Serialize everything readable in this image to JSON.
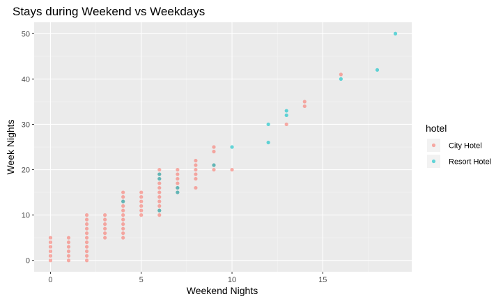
{
  "chart_data": {
    "type": "scatter",
    "title": "Stays during Weekend vs Weekdays",
    "xlabel": "Weekend Nights",
    "ylabel": "Week Nights",
    "xlim": [
      -0.9,
      19.9
    ],
    "ylim": [
      -2.5,
      52.5
    ],
    "x_ticks": [
      0,
      5,
      10,
      15
    ],
    "y_ticks": [
      0,
      10,
      20,
      30,
      40,
      50
    ],
    "grid": true,
    "legend_position": "right",
    "legend_title": "hotel",
    "series": [
      {
        "name": "City Hotel",
        "color": "#F8766D",
        "points": [
          [
            0,
            0
          ],
          [
            0,
            1
          ],
          [
            0,
            2
          ],
          [
            0,
            3
          ],
          [
            0,
            4
          ],
          [
            0,
            5
          ],
          [
            1,
            0
          ],
          [
            1,
            1
          ],
          [
            1,
            2
          ],
          [
            1,
            3
          ],
          [
            1,
            4
          ],
          [
            1,
            5
          ],
          [
            2,
            0
          ],
          [
            2,
            1
          ],
          [
            2,
            2
          ],
          [
            2,
            3
          ],
          [
            2,
            4
          ],
          [
            2,
            5
          ],
          [
            2,
            6
          ],
          [
            2,
            7
          ],
          [
            2,
            8
          ],
          [
            2,
            9
          ],
          [
            2,
            10
          ],
          [
            3,
            5
          ],
          [
            3,
            6
          ],
          [
            3,
            7
          ],
          [
            3,
            8
          ],
          [
            3,
            9
          ],
          [
            3,
            10
          ],
          [
            4,
            5
          ],
          [
            4,
            6
          ],
          [
            4,
            7
          ],
          [
            4,
            8
          ],
          [
            4,
            9
          ],
          [
            4,
            10
          ],
          [
            4,
            11
          ],
          [
            4,
            12
          ],
          [
            4,
            13
          ],
          [
            4,
            14
          ],
          [
            4,
            15
          ],
          [
            5,
            10
          ],
          [
            5,
            11
          ],
          [
            5,
            12
          ],
          [
            5,
            13
          ],
          [
            5,
            14
          ],
          [
            5,
            15
          ],
          [
            6,
            10
          ],
          [
            6,
            11
          ],
          [
            6,
            12
          ],
          [
            6,
            13
          ],
          [
            6,
            14
          ],
          [
            6,
            15
          ],
          [
            6,
            16
          ],
          [
            6,
            17
          ],
          [
            6,
            18
          ],
          [
            6,
            19
          ],
          [
            6,
            20
          ],
          [
            7,
            15
          ],
          [
            7,
            16
          ],
          [
            7,
            17
          ],
          [
            7,
            18
          ],
          [
            7,
            19
          ],
          [
            7,
            20
          ],
          [
            8,
            16
          ],
          [
            8,
            18
          ],
          [
            8,
            19
          ],
          [
            8,
            20
          ],
          [
            8,
            21
          ],
          [
            8,
            22
          ],
          [
            9,
            20
          ],
          [
            9,
            21
          ],
          [
            9,
            24
          ],
          [
            9,
            25
          ],
          [
            10,
            20
          ],
          [
            13,
            30
          ],
          [
            14,
            34
          ],
          [
            14,
            35
          ],
          [
            16,
            41
          ]
        ]
      },
      {
        "name": "Resort Hotel",
        "color": "#00BFC4",
        "points": [
          [
            4,
            13
          ],
          [
            6,
            11
          ],
          [
            6,
            18
          ],
          [
            6,
            19
          ],
          [
            7,
            15
          ],
          [
            7,
            16
          ],
          [
            9,
            21
          ],
          [
            10,
            25
          ],
          [
            12,
            26
          ],
          [
            12,
            30
          ],
          [
            13,
            32
          ],
          [
            13,
            33
          ],
          [
            16,
            40
          ],
          [
            18,
            42
          ],
          [
            19,
            50
          ]
        ]
      }
    ]
  }
}
